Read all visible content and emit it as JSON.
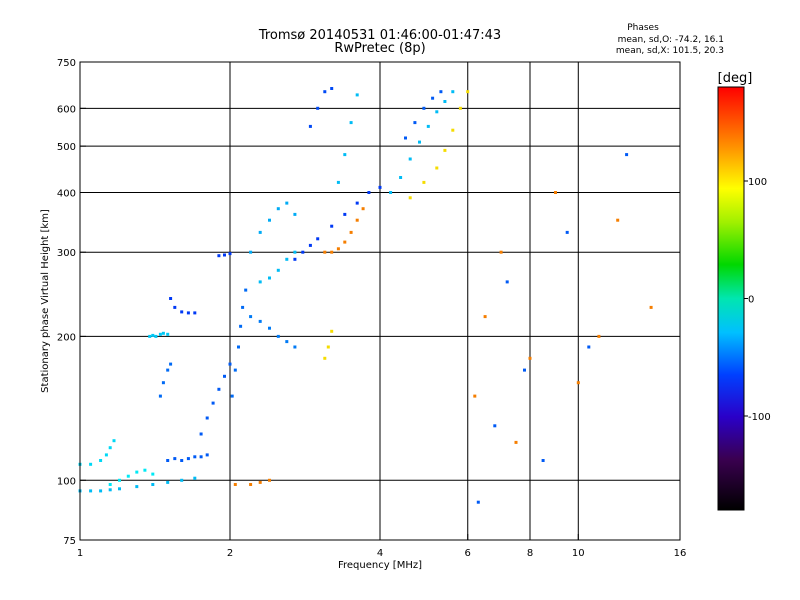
{
  "chart_data": {
    "type": "scatter",
    "title": "Tromsø 20140531 01:46:00-01:47:43",
    "subtitle": "RwPretec (8p)",
    "xlabel": "Frequency [MHz]",
    "ylabel": "Stationary phase Virtual Height [km]",
    "x_scale": "log",
    "y_scale": "log",
    "xlim": [
      1,
      16
    ],
    "ylim": [
      75,
      750
    ],
    "x_ticks": [
      {
        "value": 1,
        "label": "1"
      },
      {
        "value": 2,
        "label": "2"
      },
      {
        "value": 4,
        "label": "4"
      },
      {
        "value": 6,
        "label": "6"
      },
      {
        "value": 8,
        "label": "8"
      },
      {
        "value": 10,
        "label": "10"
      },
      {
        "value": 16,
        "label": "16"
      }
    ],
    "x_grid": [
      2,
      4,
      6,
      8,
      10
    ],
    "y_ticks": [
      {
        "value": 75,
        "label": "75"
      },
      {
        "value": 100,
        "label": "100"
      },
      {
        "value": 200,
        "label": "200"
      },
      {
        "value": 300,
        "label": "300"
      },
      {
        "value": 400,
        "label": "400"
      },
      {
        "value": 500,
        "label": "500"
      },
      {
        "value": 600,
        "label": "600"
      },
      {
        "value": 750,
        "label": "750"
      }
    ],
    "y_grid": [
      100,
      200,
      300,
      400,
      500,
      600
    ],
    "grid": true,
    "stats": {
      "heading": "Phases",
      "line1": "mean, sd,O: -74.2, 16.1",
      "line2": "mean, sd,X: 101.5, 20.3"
    },
    "colorbar": {
      "label": "[deg]",
      "range": [
        -180,
        180
      ],
      "ticks": [
        {
          "value": 100,
          "label": "100"
        },
        {
          "value": 0,
          "label": "0"
        },
        {
          "value": -100,
          "label": "-100"
        }
      ]
    },
    "series": [
      {
        "x": [
          1.0,
          1.05,
          1.1,
          1.15,
          1.2,
          1.3,
          1.4,
          1.5,
          1.6,
          1.7
        ],
        "y": [
          95,
          95,
          95,
          95.5,
          96,
          97,
          98,
          99,
          100,
          101
        ],
        "phase": -70
      },
      {
        "x": [
          1.0,
          1.05,
          1.1,
          1.13,
          1.15,
          1.17
        ],
        "y": [
          108,
          108,
          110,
          113,
          117,
          121
        ],
        "phase": -60
      },
      {
        "x": [
          1.15,
          1.2,
          1.25,
          1.3,
          1.35,
          1.4
        ],
        "y": [
          98,
          100,
          102,
          104,
          105,
          103
        ],
        "phase": -55
      },
      {
        "x": [
          1.38,
          1.4,
          1.42,
          1.45,
          1.47,
          1.5
        ],
        "y": [
          200,
          201,
          200,
          202,
          203,
          202
        ],
        "phase": -65
      },
      {
        "x": [
          1.5,
          1.55,
          1.6,
          1.65,
          1.7,
          1.75,
          1.8
        ],
        "y": [
          110,
          111,
          110,
          111,
          112,
          112,
          113
        ],
        "phase": -100
      },
      {
        "x": [
          1.45,
          1.47,
          1.5,
          1.52
        ],
        "y": [
          150,
          160,
          170,
          175
        ],
        "phase": -95
      },
      {
        "x": [
          1.52,
          1.55,
          1.6,
          1.65,
          1.7
        ],
        "y": [
          240,
          230,
          225,
          224,
          224
        ],
        "phase": -110
      },
      {
        "x": [
          1.75,
          1.8,
          1.85,
          1.9,
          1.95,
          2.0
        ],
        "y": [
          125,
          135,
          145,
          155,
          165,
          175
        ],
        "phase": -100
      },
      {
        "x": [
          1.9,
          1.95,
          2.0
        ],
        "y": [
          295,
          296,
          298
        ],
        "phase": -110
      },
      {
        "x": [
          2.02,
          2.05,
          2.08,
          2.1,
          2.12,
          2.15
        ],
        "y": [
          150,
          170,
          190,
          210,
          230,
          250
        ],
        "phase": -95
      },
      {
        "x": [
          2.2,
          2.3,
          2.4,
          2.5,
          2.6,
          2.7
        ],
        "y": [
          300,
          330,
          350,
          370,
          380,
          360
        ],
        "phase": -75
      },
      {
        "x": [
          2.3,
          2.4,
          2.5,
          2.6,
          2.7
        ],
        "y": [
          260,
          265,
          275,
          290,
          300
        ],
        "phase": -70
      },
      {
        "x": [
          2.2,
          2.3,
          2.4,
          2.5,
          2.6,
          2.7
        ],
        "y": [
          220,
          215,
          208,
          200,
          195,
          190
        ],
        "phase": -90
      },
      {
        "x": [
          2.7,
          2.8,
          2.9,
          3.0,
          3.2,
          3.4,
          3.6,
          3.8,
          4.0
        ],
        "y": [
          290,
          300,
          310,
          320,
          340,
          360,
          380,
          400,
          410
        ],
        "phase": -110
      },
      {
        "x": [
          3.1,
          3.2,
          3.3,
          3.4,
          3.5,
          3.6,
          3.7
        ],
        "y": [
          300,
          300,
          305,
          315,
          330,
          350,
          370
        ],
        "phase": 140
      },
      {
        "x": [
          2.9,
          3.0,
          3.1,
          3.2
        ],
        "y": [
          550,
          600,
          650,
          660
        ],
        "phase": -105
      },
      {
        "x": [
          3.3,
          3.4,
          3.5,
          3.6
        ],
        "y": [
          420,
          480,
          560,
          640
        ],
        "phase": -70
      },
      {
        "x": [
          4.2,
          4.4,
          4.6,
          4.8,
          5.0,
          5.2,
          5.4,
          5.6
        ],
        "y": [
          400,
          430,
          470,
          510,
          550,
          590,
          620,
          650
        ],
        "phase": -70
      },
      {
        "x": [
          4.5,
          4.7,
          4.9,
          5.1,
          5.3
        ],
        "y": [
          520,
          560,
          600,
          630,
          650
        ],
        "phase": -100
      },
      {
        "x": [
          4.6,
          4.9,
          5.2,
          5.4,
          5.6,
          5.8,
          6.0
        ],
        "y": [
          390,
          420,
          450,
          490,
          540,
          600,
          650
        ],
        "phase": 110
      },
      {
        "x": [
          3.1,
          3.15,
          3.2
        ],
        "y": [
          180,
          190,
          205
        ],
        "phase": 110
      },
      {
        "x": [
          2.05,
          2.2,
          2.3,
          2.4
        ],
        "y": [
          98,
          98,
          99,
          100
        ],
        "phase": 140
      },
      {
        "x": [
          6.2,
          6.5,
          7.0,
          7.5,
          8.0,
          9.0,
          10.0,
          11.0,
          12.0,
          14.0
        ],
        "y": [
          150,
          220,
          300,
          120,
          180,
          400,
          160,
          200,
          350,
          230
        ],
        "phase": 140
      },
      {
        "x": [
          6.3,
          6.8,
          7.2,
          7.8,
          8.5,
          9.5,
          10.5,
          12.5
        ],
        "y": [
          90,
          130,
          260,
          170,
          110,
          330,
          190,
          480
        ],
        "phase": -100
      }
    ]
  }
}
